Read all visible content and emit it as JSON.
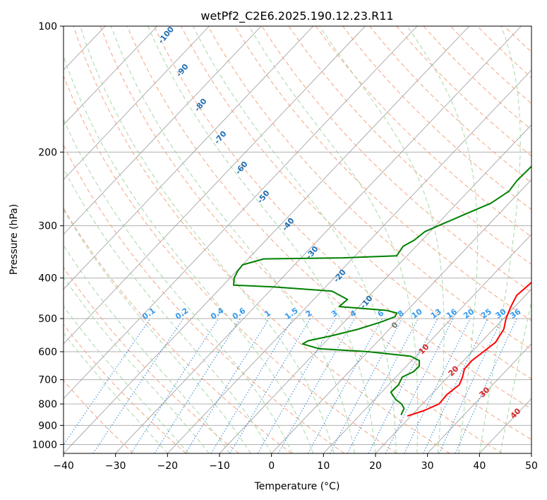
{
  "chart_data": {
    "type": "line",
    "title": "wetPf2_C2E6.2025.190.12.23.R11",
    "xlabel": "Temperature (°C)",
    "ylabel": "Pressure (hPa)",
    "xlim": [
      -40,
      50
    ],
    "ylim": [
      1050,
      100
    ],
    "y_scale": "log",
    "x_ticks": [
      "−40",
      "−30",
      "−20",
      "−10",
      "0",
      "10",
      "20",
      "30",
      "40",
      "50"
    ],
    "x_tick_values": [
      -40,
      -30,
      -20,
      -10,
      0,
      10,
      20,
      30,
      40,
      50
    ],
    "y_ticks": [
      "100",
      "200",
      "300",
      "400",
      "500",
      "600",
      "700",
      "800",
      "900",
      "1000"
    ],
    "y_tick_values": [
      100,
      200,
      300,
      400,
      500,
      600,
      700,
      800,
      900,
      1000
    ],
    "grid": true,
    "series": [
      {
        "color": "#ff0000",
        "points": [
          [
            19.3,
            855
          ],
          [
            21.5,
            830
          ],
          [
            23.2,
            800
          ],
          [
            23.0,
            760
          ],
          [
            23.6,
            720
          ],
          [
            22.8,
            690
          ],
          [
            21.7,
            660
          ],
          [
            21.6,
            630
          ],
          [
            22.2,
            600
          ],
          [
            22.8,
            570
          ],
          [
            22.0,
            530
          ],
          [
            20.5,
            500
          ],
          [
            19.3,
            470
          ],
          [
            18.3,
            440
          ],
          [
            18.8,
            410
          ],
          [
            19.6,
            395
          ],
          [
            19.8,
            375
          ],
          [
            19.0,
            360
          ],
          [
            17.2,
            345
          ],
          [
            15.5,
            320
          ],
          [
            13.7,
            295
          ],
          [
            11.6,
            270
          ],
          [
            9.5,
            250
          ],
          [
            7.2,
            230
          ],
          [
            5.0,
            212
          ],
          [
            4.5,
            190
          ],
          [
            3.6,
            170
          ],
          [
            3.3,
            157
          ],
          [
            2.6,
            145
          ],
          [
            1.5,
            132
          ],
          [
            0.2,
            122
          ],
          [
            -0.1,
            117
          ],
          [
            0.2,
            113
          ],
          [
            2.0,
            108
          ],
          [
            4.5,
            103
          ],
          [
            6.0,
            100
          ]
        ]
      },
      {
        "color": "#008000",
        "points": [
          [
            17.9,
            850
          ],
          [
            17.3,
            820
          ],
          [
            16.0,
            800
          ],
          [
            14.0,
            780
          ],
          [
            11.8,
            750
          ],
          [
            11.9,
            720
          ],
          [
            11.2,
            690
          ],
          [
            12.4,
            670
          ],
          [
            12.5,
            650
          ],
          [
            11.5,
            630
          ],
          [
            9.0,
            615
          ],
          [
            0.0,
            600
          ],
          [
            -10.0,
            590
          ],
          [
            -14.0,
            575
          ],
          [
            -13.5,
            565
          ],
          [
            -10.0,
            550
          ],
          [
            -6.0,
            530
          ],
          [
            -3.0,
            510
          ],
          [
            -1.2,
            495
          ],
          [
            -1.5,
            485
          ],
          [
            -4.0,
            478
          ],
          [
            -13.8,
            468
          ],
          [
            -13.5,
            450
          ],
          [
            -18.0,
            430
          ],
          [
            -30.0,
            420
          ],
          [
            -38.0,
            416
          ],
          [
            -39.2,
            400
          ],
          [
            -39.8,
            385
          ],
          [
            -40.0,
            372
          ],
          [
            -37.0,
            360
          ],
          [
            -22.0,
            358
          ],
          [
            -12.0,
            354
          ],
          [
            -12.5,
            336
          ],
          [
            -11.5,
            325
          ],
          [
            -11.0,
            310
          ],
          [
            -9.0,
            297
          ],
          [
            -6.5,
            282
          ],
          [
            -3.5,
            265
          ],
          [
            -2.2,
            248
          ],
          [
            -2.6,
            234
          ],
          [
            -2.4,
            215
          ],
          [
            -3.2,
            198
          ],
          [
            -3.9,
            183
          ],
          [
            -3.8,
            170
          ],
          [
            -3.3,
            160
          ],
          [
            -4.3,
            152
          ],
          [
            -3.8,
            142
          ],
          [
            -3.0,
            132
          ],
          [
            -3.1,
            120
          ],
          [
            -1.5,
            115
          ],
          [
            -0.5,
            108
          ],
          [
            -0.8,
            100
          ]
        ]
      }
    ],
    "dry_adiabat_labels": [
      "-100",
      "-90",
      "-80",
      "-70",
      "-60",
      "-50",
      "-40",
      "-30",
      "-20",
      "-10",
      "0"
    ],
    "moist_adiabat_labels": [
      "10",
      "20",
      "30",
      "40"
    ],
    "mixing_ratio_labels": [
      "0.1",
      "0.2",
      "0.4",
      "0.6",
      "1",
      "1.5",
      "2",
      "3",
      "4",
      "6",
      "8",
      "10",
      "13",
      "16",
      "20",
      "25",
      "30",
      "36"
    ]
  },
  "colors": {
    "isotherm_skew": "#9a9a9a",
    "isobar": "#b0b0b0",
    "dry_adiabat": "#f4a582",
    "moist_adiabat": "#a6d7a6",
    "mixing_ratio": "#3a8fd9",
    "temperature": "#ff0000",
    "dewpoint": "#008000"
  }
}
